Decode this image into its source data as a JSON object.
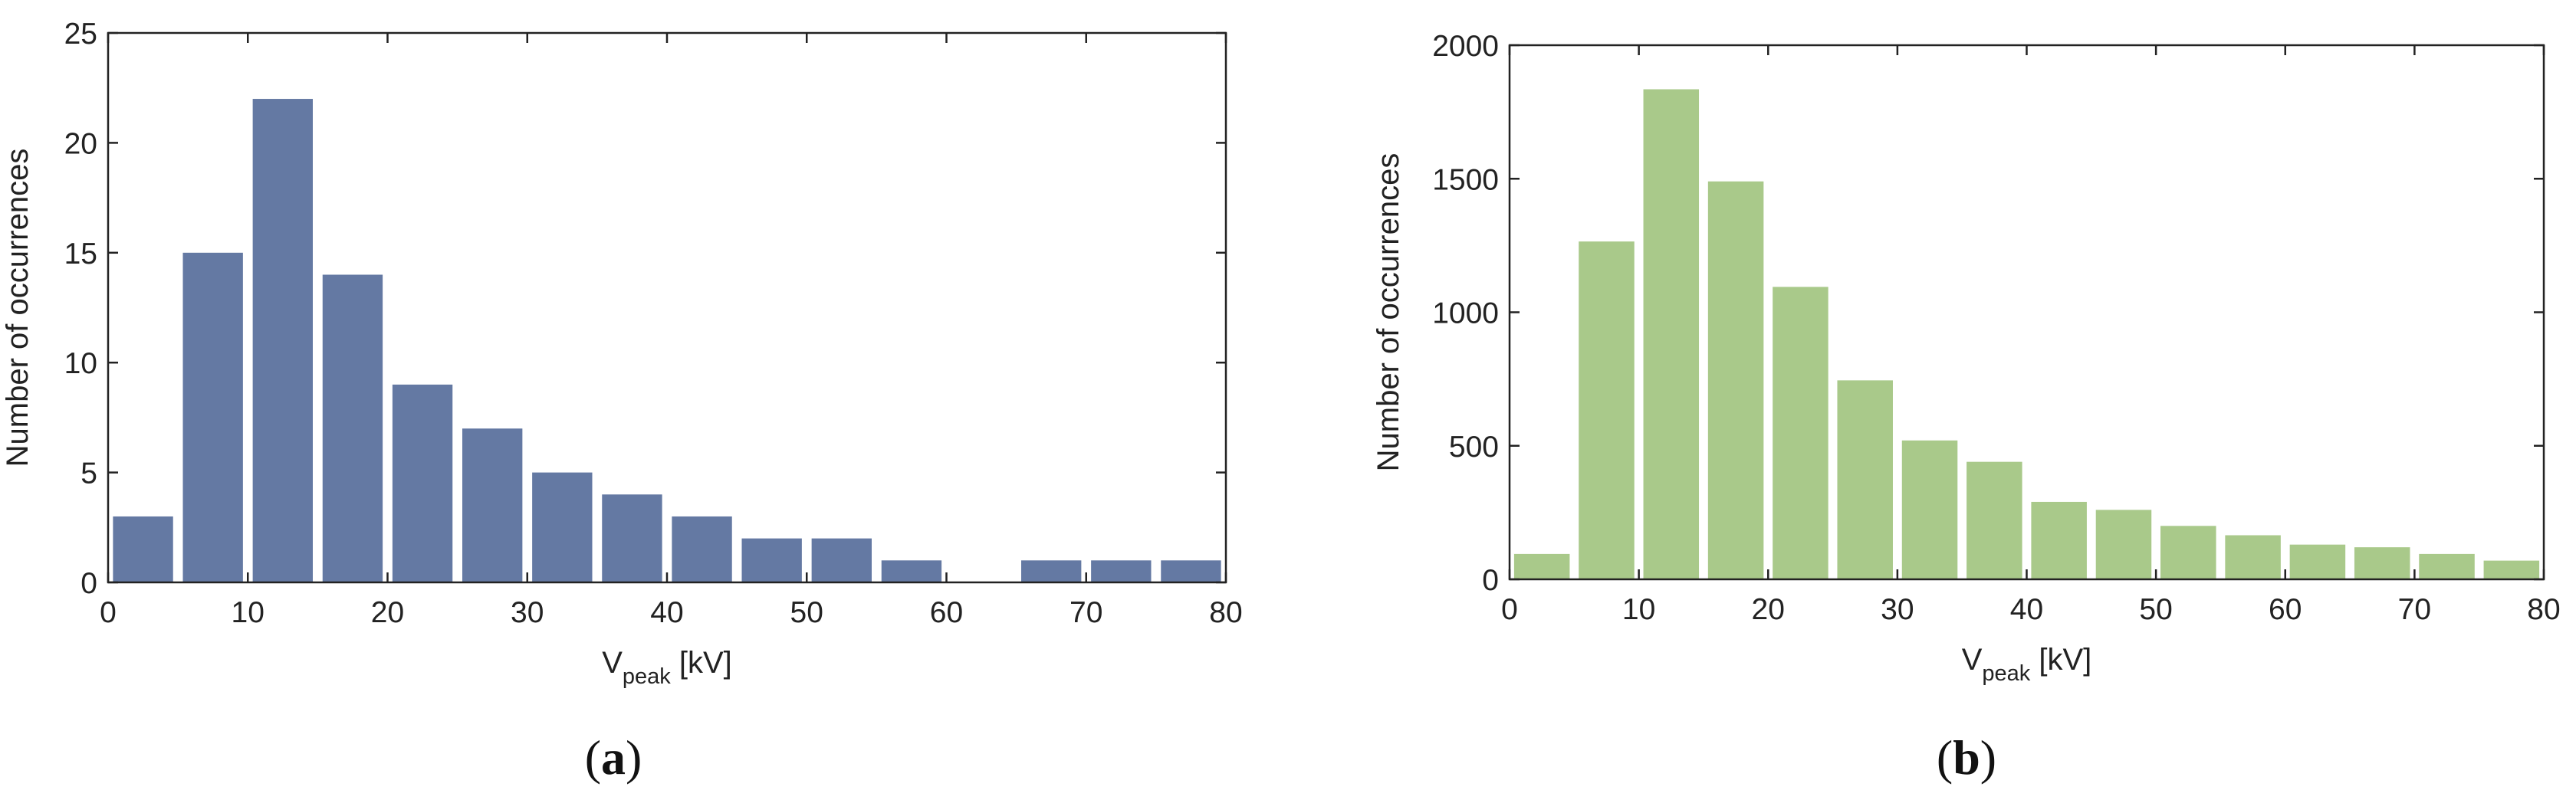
{
  "chart_data": [
    {
      "type": "bar",
      "panel_label": {
        "open": "(",
        "letter": "a",
        "close": ")"
      },
      "color": "#6479a3",
      "x": [
        2.5,
        7.5,
        12.5,
        17.5,
        22.5,
        27.5,
        32.5,
        37.5,
        42.5,
        47.5,
        52.5,
        57.5,
        62.5,
        67.5,
        72.5,
        77.5
      ],
      "values": [
        3,
        15,
        22,
        14,
        9,
        7,
        5,
        4,
        3,
        2,
        2,
        1,
        0,
        1,
        1,
        1
      ],
      "bin_width": 5,
      "xlabel": {
        "main": "V",
        "sub": "peak",
        "unit": " [kV]"
      },
      "ylabel": "Number of occurrences",
      "xlim": [
        0,
        80
      ],
      "ylim": [
        0,
        25
      ],
      "xticks": [
        "0",
        "10",
        "20",
        "30",
        "40",
        "50",
        "60",
        "70",
        "80"
      ],
      "yticks": [
        "0",
        "5",
        "10",
        "15",
        "20",
        "25"
      ],
      "grid": false
    },
    {
      "type": "bar",
      "panel_label": {
        "open": "(",
        "letter": "b",
        "close": ")"
      },
      "color": "#a9c98a",
      "x": [
        2.5,
        7.5,
        12.5,
        17.5,
        22.5,
        27.5,
        32.5,
        37.5,
        42.5,
        47.5,
        52.5,
        57.5,
        62.5,
        67.5,
        72.5,
        77.5
      ],
      "values": [
        95,
        1265,
        1835,
        1490,
        1095,
        745,
        520,
        440,
        290,
        260,
        200,
        165,
        130,
        120,
        95,
        70
      ],
      "bin_width": 5,
      "xlabel": {
        "main": "V",
        "sub": "peak",
        "unit": " [kV]"
      },
      "ylabel": "Number of occurrences",
      "xlim": [
        0,
        80
      ],
      "ylim": [
        0,
        2000
      ],
      "xticks": [
        "0",
        "10",
        "20",
        "30",
        "40",
        "50",
        "60",
        "70",
        "80"
      ],
      "yticks": [
        "0",
        "500",
        "1000",
        "1500",
        "2000"
      ],
      "grid": false
    }
  ]
}
